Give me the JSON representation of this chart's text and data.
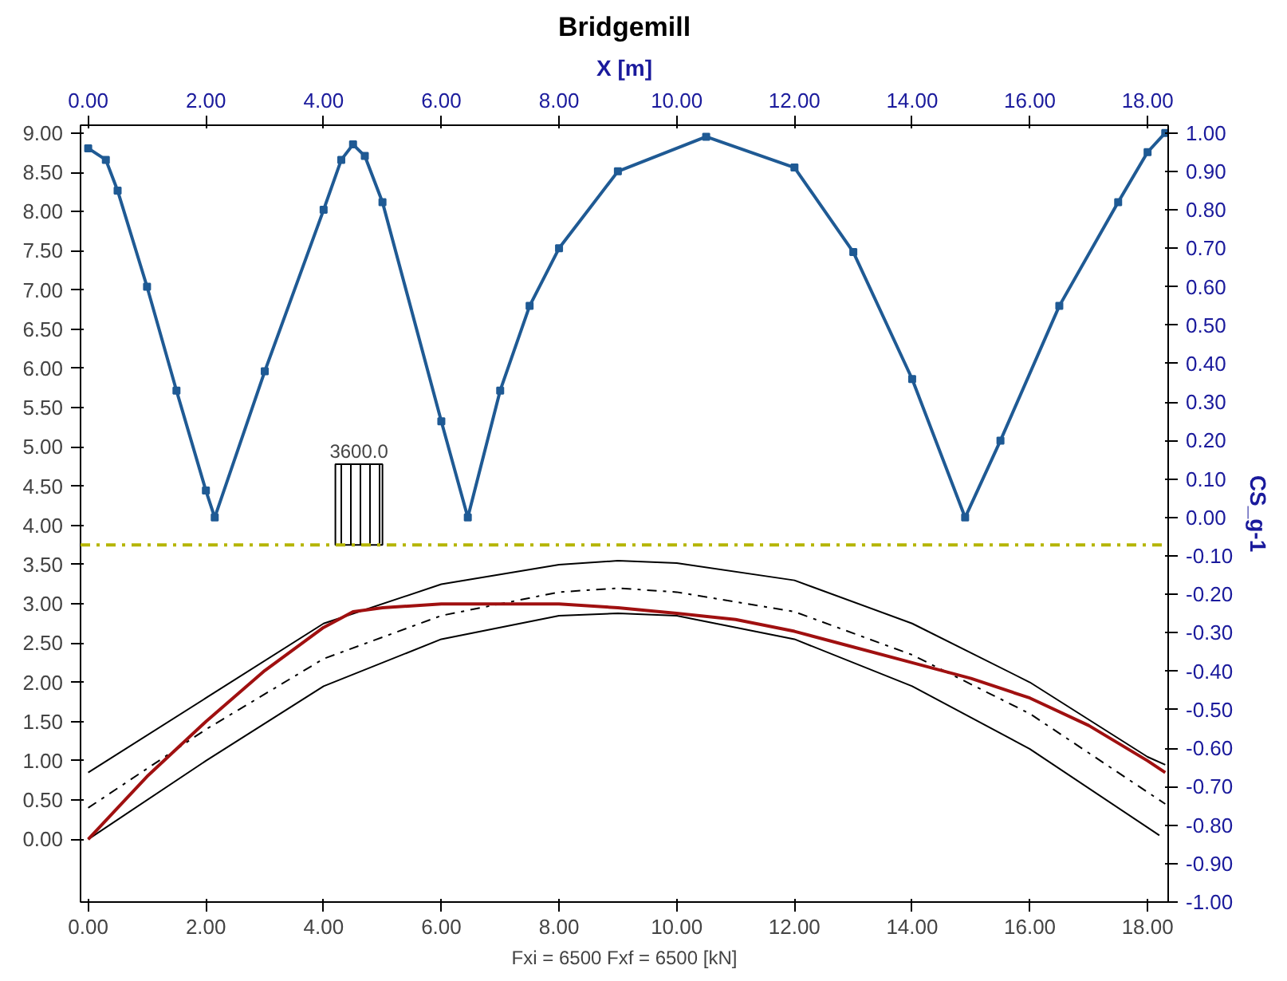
{
  "chart_data": {
    "type": "line",
    "title": "Bridgemill",
    "x2label": "X [m]",
    "xlabel": "Fxi = 6500 Fxf = 6500 [kN]",
    "y2label": "CS_g-1",
    "xlim": [
      -0.13,
      18.35
    ],
    "x2lim": [
      -0.13,
      18.35
    ],
    "ylim": [
      -0.8,
      9.1
    ],
    "y2lim": [
      -1.0,
      1.02
    ],
    "xticks": [
      {
        "value": 0,
        "label": "0.00"
      },
      {
        "value": 2,
        "label": "2.00"
      },
      {
        "value": 4,
        "label": "4.00"
      },
      {
        "value": 6,
        "label": "6.00"
      },
      {
        "value": 8,
        "label": "8.00"
      },
      {
        "value": 10,
        "label": "10.00"
      },
      {
        "value": 12,
        "label": "12.00"
      },
      {
        "value": 14,
        "label": "14.00"
      },
      {
        "value": 16,
        "label": "16.00"
      },
      {
        "value": 18,
        "label": "18.00"
      }
    ],
    "x2ticks": [
      {
        "value": 0,
        "label": "0.00"
      },
      {
        "value": 2,
        "label": "2.00"
      },
      {
        "value": 4,
        "label": "4.00"
      },
      {
        "value": 6,
        "label": "6.00"
      },
      {
        "value": 8,
        "label": "8.00"
      },
      {
        "value": 10,
        "label": "10.00"
      },
      {
        "value": 12,
        "label": "12.00"
      },
      {
        "value": 14,
        "label": "14.00"
      },
      {
        "value": 16,
        "label": "16.00"
      },
      {
        "value": 18,
        "label": "18.00"
      }
    ],
    "yticks": [
      {
        "value": 0,
        "label": "0.00"
      },
      {
        "value": 0.5,
        "label": "0.50"
      },
      {
        "value": 1,
        "label": "1.00"
      },
      {
        "value": 1.5,
        "label": "1.50"
      },
      {
        "value": 2,
        "label": "2.00"
      },
      {
        "value": 2.5,
        "label": "2.50"
      },
      {
        "value": 3,
        "label": "3.00"
      },
      {
        "value": 3.5,
        "label": "3.50"
      },
      {
        "value": 4,
        "label": "4.00"
      },
      {
        "value": 4.5,
        "label": "4.50"
      },
      {
        "value": 5,
        "label": "5.00"
      },
      {
        "value": 5.5,
        "label": "5.50"
      },
      {
        "value": 6,
        "label": "6.00"
      },
      {
        "value": 6.5,
        "label": "6.50"
      },
      {
        "value": 7,
        "label": "7.00"
      },
      {
        "value": 7.5,
        "label": "7.50"
      },
      {
        "value": 8,
        "label": "8.00"
      },
      {
        "value": 8.5,
        "label": "8.50"
      },
      {
        "value": 9,
        "label": "9.00"
      }
    ],
    "y2ticks": [
      {
        "value": -1,
        "label": "-1.00"
      },
      {
        "value": -0.9,
        "label": "-0.90"
      },
      {
        "value": -0.8,
        "label": "-0.80"
      },
      {
        "value": -0.7,
        "label": "-0.70"
      },
      {
        "value": -0.6,
        "label": "-0.60"
      },
      {
        "value": -0.5,
        "label": "-0.50"
      },
      {
        "value": -0.4,
        "label": "-0.40"
      },
      {
        "value": -0.3,
        "label": "-0.30"
      },
      {
        "value": -0.2,
        "label": "-0.20"
      },
      {
        "value": -0.1,
        "label": "-0.10"
      },
      {
        "value": 0,
        "label": "0.00"
      },
      {
        "value": 0.1,
        "label": "0.10"
      },
      {
        "value": 0.2,
        "label": "0.20"
      },
      {
        "value": 0.3,
        "label": "0.30"
      },
      {
        "value": 0.4,
        "label": "0.40"
      },
      {
        "value": 0.5,
        "label": "0.50"
      },
      {
        "value": 0.6,
        "label": "0.60"
      },
      {
        "value": 0.7,
        "label": "0.70"
      },
      {
        "value": 0.8,
        "label": "0.80"
      },
      {
        "value": 0.9,
        "label": "0.90"
      },
      {
        "value": 1,
        "label": "1.00"
      }
    ],
    "grid": false,
    "annotations": [
      {
        "text": "3600.0",
        "x": 4.6,
        "y": 4.78
      }
    ],
    "ref_lines": [
      {
        "axis": "y",
        "value": 3.75,
        "color": "#b5b500",
        "line_style": "dashed"
      }
    ],
    "series": [
      {
        "axis": "y2",
        "marker": "square",
        "line_style": "solid",
        "color": "#1f5a94",
        "x": [
          0,
          0.3,
          0.5,
          1.0,
          1.5,
          2.0,
          2.15,
          3.0,
          4.0,
          4.3,
          4.5,
          4.7,
          5.0,
          6.0,
          6.45,
          7.0,
          7.5,
          8.0,
          9.0,
          10.5,
          12.0,
          13.0,
          14.0,
          14.9,
          15.5,
          16.5,
          17.5,
          18.0,
          18.3
        ],
        "values": [
          0.96,
          0.93,
          0.85,
          0.6,
          0.33,
          0.07,
          0.0,
          0.38,
          0.8,
          0.93,
          0.97,
          0.94,
          0.82,
          0.25,
          0.0,
          0.33,
          0.55,
          0.7,
          0.9,
          0.99,
          0.91,
          0.69,
          0.36,
          0.0,
          0.2,
          0.55,
          0.82,
          0.95,
          1.0
        ]
      },
      {
        "axis": "y",
        "marker": "none",
        "line_style": "solid",
        "color": "#000000",
        "x": [
          0,
          2,
          4,
          6,
          8,
          9,
          10,
          12,
          14,
          16,
          18,
          18.3
        ],
        "values": [
          0.85,
          1.8,
          2.75,
          3.25,
          3.5,
          3.55,
          3.52,
          3.3,
          2.75,
          2.0,
          1.05,
          0.95
        ]
      },
      {
        "axis": "y",
        "marker": "none",
        "line_style": "dashed",
        "color": "#000000",
        "x": [
          0,
          2,
          4,
          6,
          8,
          9,
          10,
          12,
          14,
          16,
          18,
          18.3
        ],
        "values": [
          0.4,
          1.4,
          2.3,
          2.85,
          3.15,
          3.2,
          3.15,
          2.9,
          2.35,
          1.6,
          0.6,
          0.45
        ]
      },
      {
        "axis": "y",
        "marker": "none",
        "line_style": "solid",
        "color": "#000000",
        "x": [
          0,
          2,
          4,
          6,
          8,
          9,
          10,
          12,
          14,
          16,
          18.2
        ],
        "values": [
          0.0,
          1.0,
          1.95,
          2.55,
          2.85,
          2.88,
          2.85,
          2.55,
          1.95,
          1.15,
          0.05
        ]
      },
      {
        "axis": "y",
        "marker": "none",
        "line_style": "solid",
        "color": "#a01010",
        "x": [
          0,
          1,
          2,
          3,
          4,
          4.5,
          5,
          6,
          8,
          9,
          10,
          11,
          12,
          13,
          14,
          15,
          16,
          17,
          18,
          18.3
        ],
        "values": [
          0.0,
          0.8,
          1.5,
          2.15,
          2.7,
          2.9,
          2.95,
          3.0,
          3.0,
          2.95,
          2.88,
          2.8,
          2.65,
          2.45,
          2.25,
          2.05,
          1.8,
          1.45,
          1.0,
          0.85
        ]
      },
      {
        "type": "bar",
        "axis": "y",
        "color": "#000000",
        "x": [
          4.6
        ],
        "base": [
          3.75
        ],
        "values": [
          1.03
        ]
      }
    ]
  }
}
